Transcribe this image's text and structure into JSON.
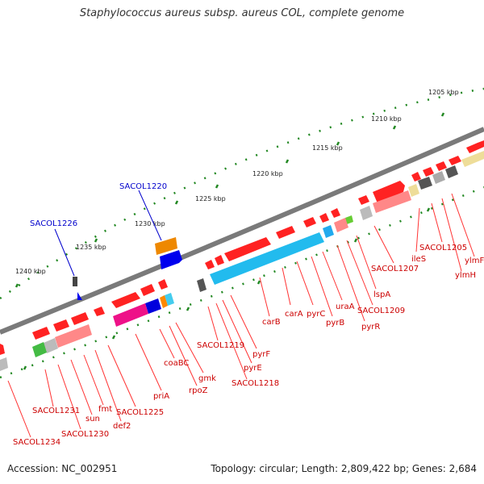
{
  "title": "Staphylococcus aureus subsp. aureus COL, complete genome",
  "footer": {
    "accession": "Accession: NC_002951",
    "topology": "Topology: circular; Length: 2,809,422 bp; Genes: 2,684"
  },
  "colors": {
    "backbone": "#7a7a7a",
    "forward_gene": "#ff0000",
    "gene_label": "#cc0000",
    "highlight_label": "#0000cc",
    "tick": "#228822"
  },
  "kbp_markers": [
    "1205 kbp",
    "1210 kbp",
    "1215 kbp",
    "1220 kbp",
    "1225 kbp",
    "1230 kbp",
    "1235 kbp",
    "1240 kbp"
  ],
  "highlighted_genes": [
    "SACOL1220",
    "SACOL1226"
  ],
  "gene_labels": [
    "ylmF",
    "ylmH",
    "SACOL1205",
    "ileS",
    "SACOL1207",
    "lspA",
    "SACOL1209",
    "pyrR",
    "uraA",
    "pyrB",
    "pyrC",
    "carA",
    "carB",
    "pyrF",
    "pyrE",
    "SACOL1218",
    "SACOL1219",
    "gmk",
    "rpoZ",
    "coaBC",
    "priA",
    "SACOL1225",
    "def2",
    "fmt",
    "sun",
    "SACOL1230",
    "SACOL1231",
    "SACOL1234"
  ]
}
